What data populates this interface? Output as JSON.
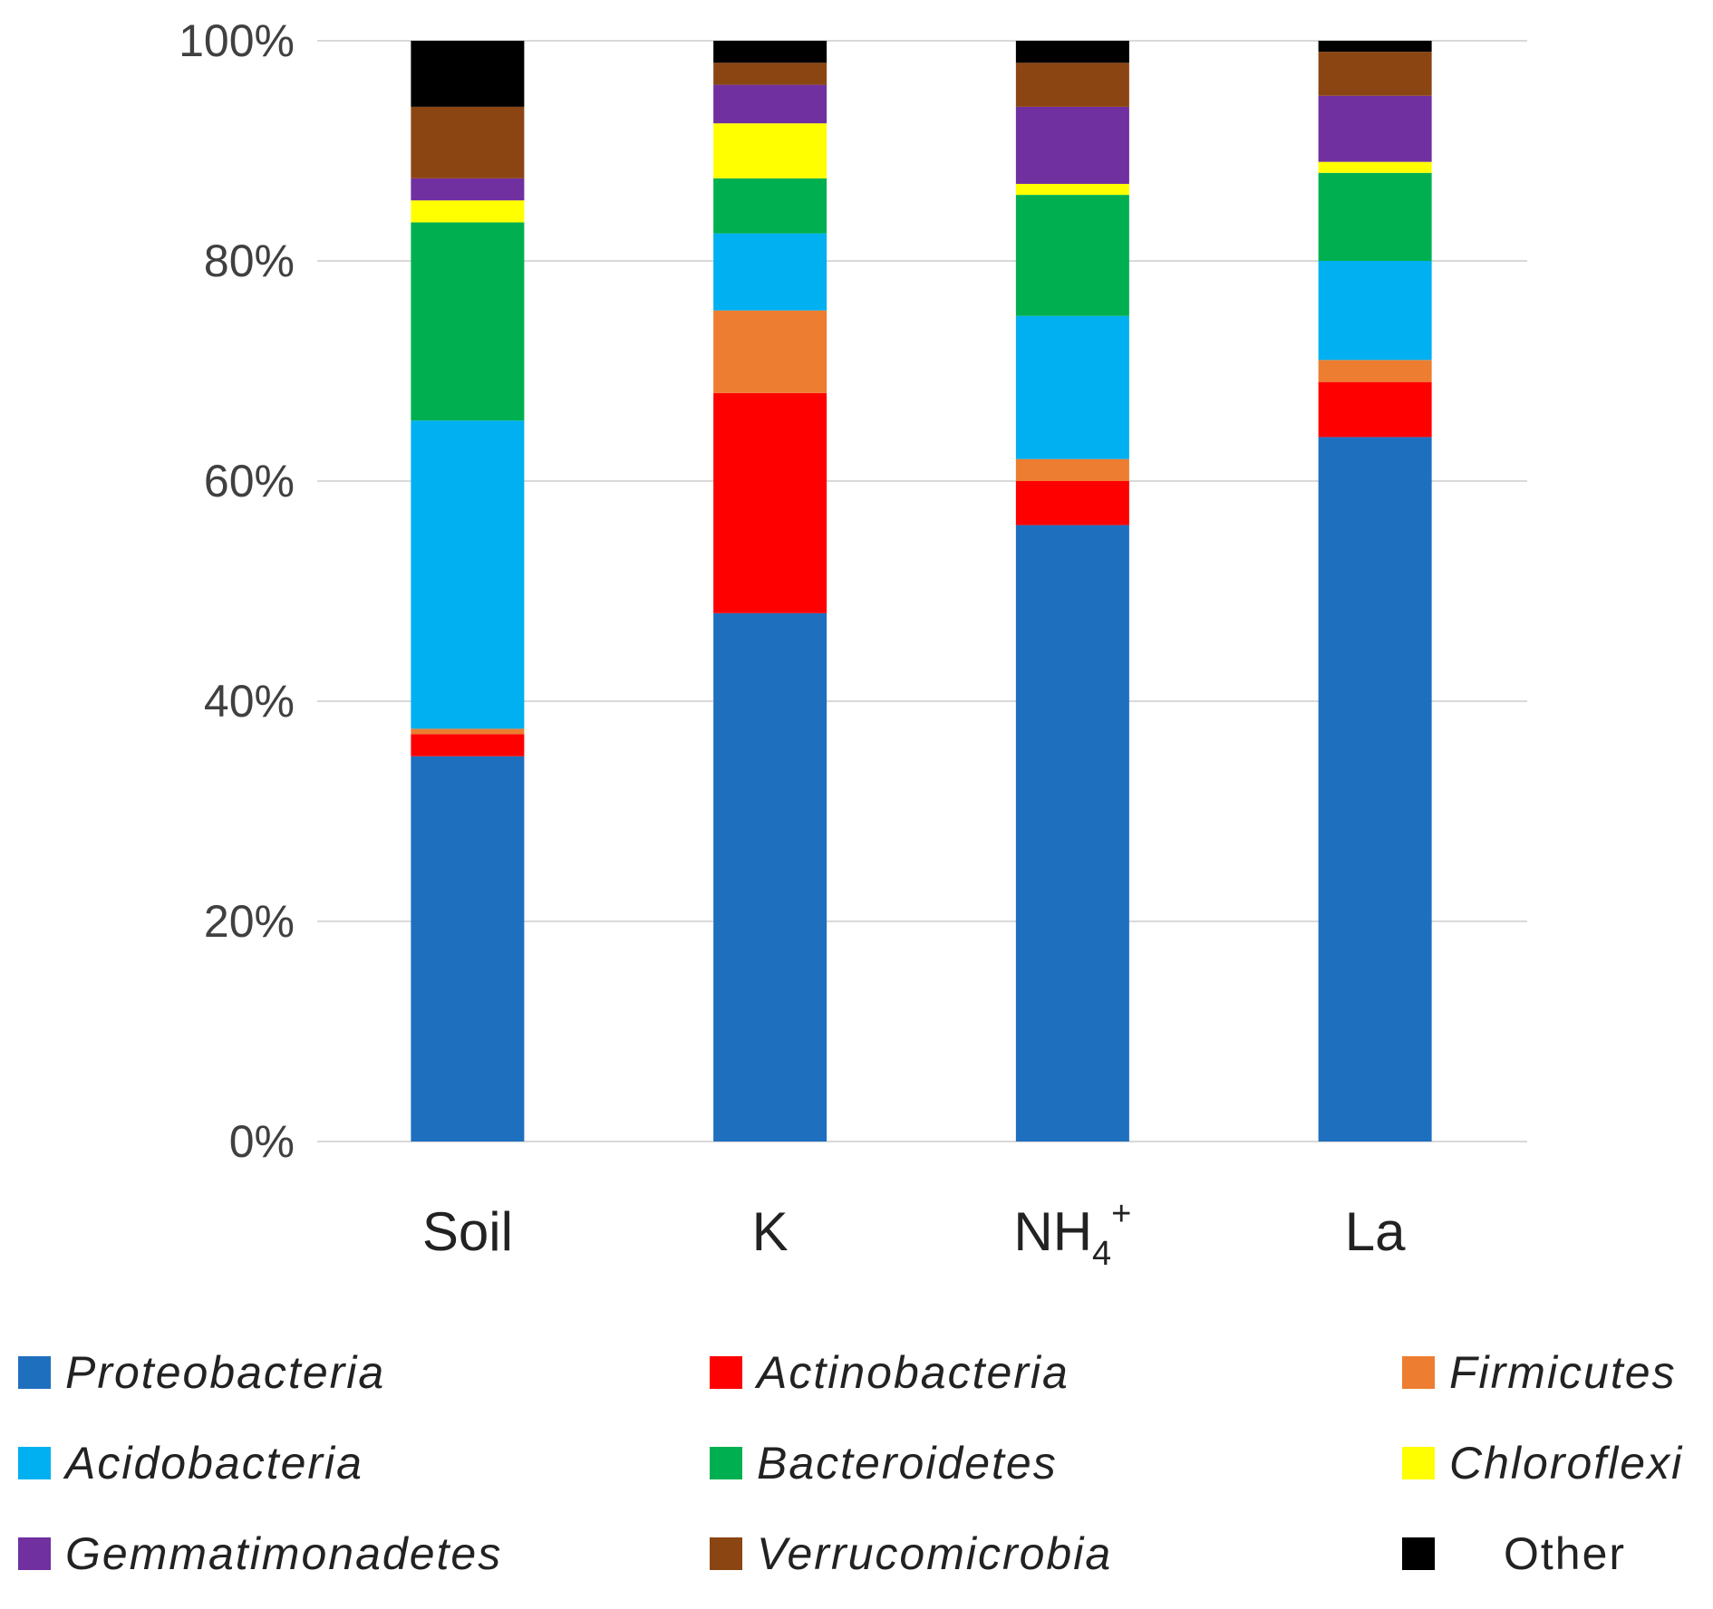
{
  "chart_data": {
    "type": "bar",
    "stacked": true,
    "categories": [
      "Soil",
      "K",
      "NH4+",
      "La"
    ],
    "category_display": [
      {
        "main": "Soil",
        "sub": "",
        "sup": ""
      },
      {
        "main": "K",
        "sub": "",
        "sup": ""
      },
      {
        "main": "NH",
        "sub": "4",
        "sup": "+"
      },
      {
        "main": "La",
        "sub": "",
        "sup": ""
      }
    ],
    "yticks": [
      "0%",
      "20%",
      "40%",
      "60%",
      "80%",
      "100%"
    ],
    "ylim": [
      0,
      100
    ],
    "grid": true,
    "legend_position": "bottom",
    "series": [
      {
        "name": "Proteobacteria",
        "color": "#1F6FBF",
        "italic": true,
        "values": [
          35,
          48,
          56,
          64
        ]
      },
      {
        "name": "Actinobacteria",
        "color": "#FF0000",
        "italic": true,
        "values": [
          2,
          20,
          4,
          5
        ]
      },
      {
        "name": "Firmicutes",
        "color": "#ED7D31",
        "italic": true,
        "values": [
          0.5,
          7.5,
          2,
          2
        ]
      },
      {
        "name": "Acidobacteria",
        "color": "#00B0F0",
        "italic": true,
        "values": [
          28,
          7,
          13,
          9
        ]
      },
      {
        "name": "Bacteroidetes",
        "color": "#00B050",
        "italic": true,
        "values": [
          18,
          5,
          11,
          8
        ]
      },
      {
        "name": "Chloroflexi",
        "color": "#FFFF00",
        "italic": true,
        "values": [
          2,
          5,
          1,
          1
        ]
      },
      {
        "name": "Gemmatimonadetes",
        "color": "#7030A0",
        "italic": true,
        "values": [
          2,
          3.5,
          7,
          6
        ]
      },
      {
        "name": "Verrucomicrobia",
        "color": "#8B4513",
        "italic": true,
        "values": [
          6.5,
          2,
          4,
          4
        ]
      },
      {
        "name": "Other",
        "color": "#000000",
        "italic": false,
        "values": [
          6,
          2,
          2,
          1
        ]
      }
    ]
  }
}
